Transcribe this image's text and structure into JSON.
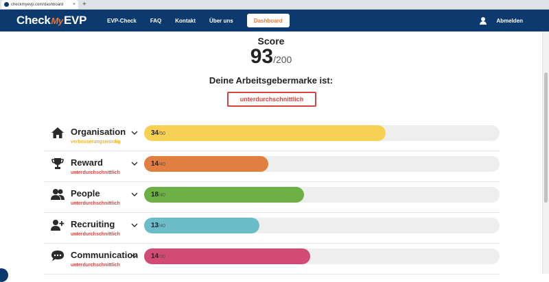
{
  "browser": {
    "tab_title": "checkmyevp.com/dashboard",
    "close_glyph": "×",
    "new_tab_glyph": "+"
  },
  "nav": {
    "logo_check": "Check",
    "logo_my": "My",
    "logo_evp": "EVP",
    "links": [
      "EVP-Check",
      "FAQ",
      "Kontakt",
      "Über uns"
    ],
    "dashboard_label": "Dashboard",
    "logout_label": "Abmelden",
    "user_icon": "user-icon"
  },
  "score": {
    "label": "Score",
    "value": "93",
    "max": "/200"
  },
  "brand": {
    "label": "Deine Arbeitsgebermarke ist:",
    "rating": "unterdurchschnittlich"
  },
  "categories": [
    {
      "name": "Organisation",
      "status": "verbesserungswürdig",
      "status_color": "#f0b429",
      "value": 34,
      "max": 50,
      "value_label": "34",
      "max_label": "/50",
      "color": "#f7d154",
      "icon": "house-icon"
    },
    {
      "name": "Reward",
      "status": "unterdurchschnittlich",
      "status_color": "#d9413d",
      "value": 14,
      "max": 40,
      "value_label": "14",
      "max_label": "/40",
      "color": "#e07f3f",
      "icon": "trophy-icon"
    },
    {
      "name": "People",
      "status": "unterdurchschnittlich",
      "status_color": "#d9413d",
      "value": 18,
      "max": 40,
      "value_label": "18",
      "max_label": "/40",
      "color": "#6db146",
      "icon": "people-icon"
    },
    {
      "name": "Recruiting",
      "status": "unterdurchschnittlich",
      "status_color": "#d9413d",
      "value": 13,
      "max": 40,
      "value_label": "13",
      "max_label": "/40",
      "color": "#6bbec9",
      "icon": "add-user-icon"
    },
    {
      "name": "Communication",
      "status": "unterdurchschnittlich",
      "status_color": "#d9413d",
      "value": 14,
      "max": 30,
      "value_label": "14",
      "max_label": "/30",
      "color": "#d14b75",
      "icon": "chat-icon"
    }
  ]
}
